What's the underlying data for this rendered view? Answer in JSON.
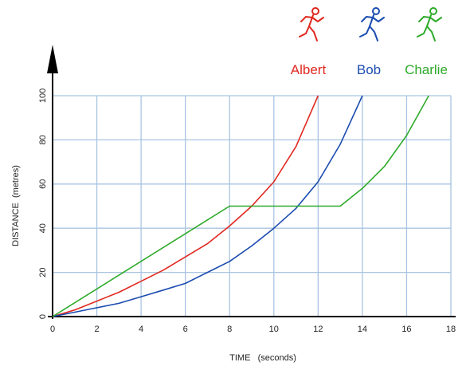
{
  "chart_data": {
    "type": "line",
    "title": "",
    "xlabel": "TIME   (seconds)",
    "ylabel": "DISTANCE  (metres)",
    "xlim": [
      0,
      18
    ],
    "ylim": [
      0,
      100
    ],
    "x_ticks": [
      "0",
      "2",
      "4",
      "6",
      "8",
      "10",
      "12",
      "14",
      "16",
      "18"
    ],
    "y_ticks": [
      "0",
      "20",
      "40",
      "60",
      "80",
      "100"
    ],
    "grid": true,
    "legend_position": "top-right",
    "series": [
      {
        "name": "Albert",
        "color": "#e0281f",
        "icon": "running-figure-icon",
        "x": [
          0,
          1,
          2,
          3,
          4,
          5,
          6,
          7,
          8,
          9,
          10,
          11,
          12
        ],
        "y": [
          0,
          3,
          7,
          11,
          16,
          21,
          27,
          33,
          41,
          50,
          61,
          77,
          100
        ]
      },
      {
        "name": "Bob",
        "color": "#1a4bb0",
        "icon": "running-figure-icon",
        "x": [
          0,
          1,
          2,
          3,
          4,
          5,
          6,
          7,
          8,
          9,
          10,
          11,
          12,
          13,
          14
        ],
        "y": [
          0,
          2,
          4,
          6,
          9,
          12,
          15,
          20,
          25,
          32,
          40,
          49,
          61,
          78,
          100
        ]
      },
      {
        "name": "Charlie",
        "color": "#2eaa2a",
        "icon": "running-figure-icon",
        "x": [
          0,
          8,
          13,
          14,
          15,
          16,
          17
        ],
        "y": [
          0,
          50,
          50,
          58,
          68,
          82,
          100
        ]
      }
    ]
  }
}
